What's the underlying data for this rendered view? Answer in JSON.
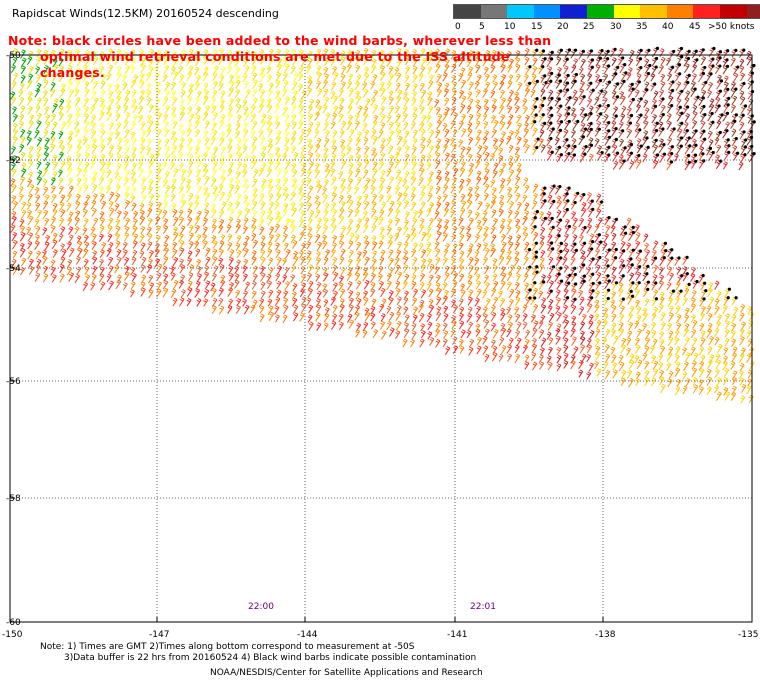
{
  "title": "Rapidscat Winds(12.5KM) 20160524 descending",
  "note_line1": "Note: black circles have been added to the wind barbs, wherever less than",
  "note_line2": "optimal wind retrieval conditions are met due to the ISS altitude changes.",
  "legend": {
    "labels": [
      "0",
      "5",
      "10",
      "15",
      "20",
      "25",
      "30",
      "35",
      "40",
      "45",
      ">50 knots"
    ],
    "colors": [
      "#444444",
      "#777777",
      "#00c8ff",
      "#0090ff",
      "#1020d0",
      "#00b000",
      "#ffff00",
      "#ffc000",
      "#ff8000",
      "#ff2020",
      "#c00000",
      "#902020",
      "#7a4a10",
      "#ff00ff",
      "#a000a0",
      "#400060"
    ]
  },
  "lat_labels": [
    "-50",
    "-52",
    "-54",
    "-56",
    "-58",
    "-60"
  ],
  "lon_labels": [
    "-150",
    "-147",
    "-144",
    "-141",
    "-138",
    "-135"
  ],
  "time_labels": [
    "22:00",
    "22:01"
  ],
  "footer": {
    "line1": "Note: 1) Times are GMT 2)Times along bottom correspond to measurement at -50S",
    "line2": "3)Data buffer is 22 hrs from 20160524 4) Black wind barbs indicate possible contamination",
    "line3": "NOAA/NESDIS/Center for Satellite Applications and Research"
  }
}
